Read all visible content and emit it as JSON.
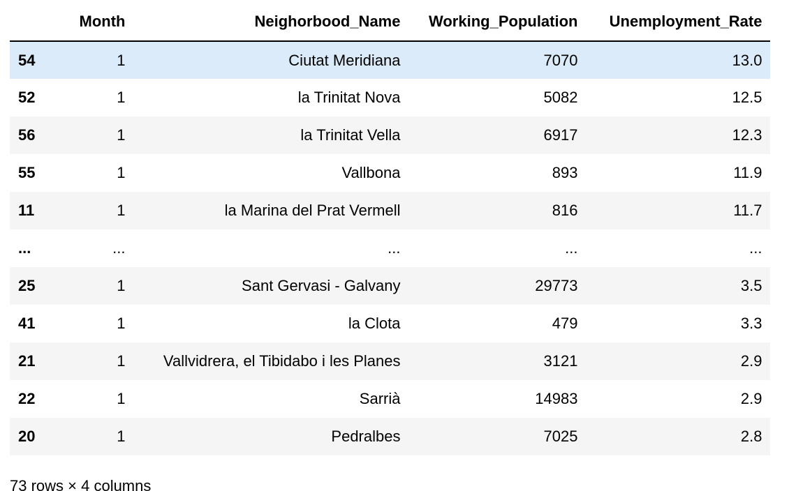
{
  "table": {
    "headers": {
      "index": "",
      "month": "Month",
      "name": "Neighorbood_Name",
      "population": "Working_Population",
      "rate": "Unemployment_Rate"
    },
    "rows": [
      {
        "index": "54",
        "month": "1",
        "name": "Ciutat Meridiana",
        "population": "7070",
        "rate": "13.0"
      },
      {
        "index": "52",
        "month": "1",
        "name": "la Trinitat Nova",
        "population": "5082",
        "rate": "12.5"
      },
      {
        "index": "56",
        "month": "1",
        "name": "la Trinitat Vella",
        "population": "6917",
        "rate": "12.3"
      },
      {
        "index": "55",
        "month": "1",
        "name": "Vallbona",
        "population": "893",
        "rate": "11.9"
      },
      {
        "index": "11",
        "month": "1",
        "name": "la Marina del Prat Vermell",
        "population": "816",
        "rate": "11.7"
      },
      {
        "index": "...",
        "month": "...",
        "name": "...",
        "population": "...",
        "rate": "..."
      },
      {
        "index": "25",
        "month": "1",
        "name": "Sant Gervasi - Galvany",
        "population": "29773",
        "rate": "3.5"
      },
      {
        "index": "41",
        "month": "1",
        "name": "la Clota",
        "population": "479",
        "rate": "3.3"
      },
      {
        "index": "21",
        "month": "1",
        "name": "Vallvidrera, el Tibidabo i les Planes",
        "population": "3121",
        "rate": "2.9"
      },
      {
        "index": "22",
        "month": "1",
        "name": "Sarrià",
        "population": "14983",
        "rate": "2.9"
      },
      {
        "index": "20",
        "month": "1",
        "name": "Pedralbes",
        "population": "7025",
        "rate": "2.8"
      }
    ]
  },
  "footer": {
    "shape_text": "73 rows × 4 columns"
  },
  "colors": {
    "highlight_row": "#dcebf9",
    "stripe": "#f5f5f5"
  }
}
